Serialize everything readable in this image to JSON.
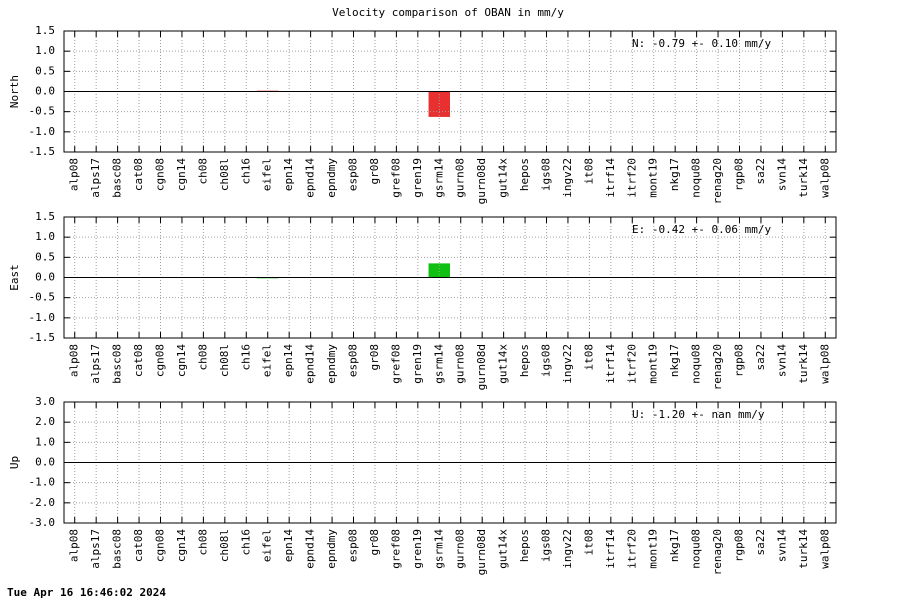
{
  "title": "Velocity comparison of OBAN in mm/y",
  "footer": "Tue Apr 16 16:46:02 2024",
  "chart_data": [
    {
      "type": "bar",
      "ylabel": "North",
      "annotation": "N:  -0.79 +-  0.10 mm/y",
      "color": "#e83030",
      "grid": true,
      "categories": [
        "alp08",
        "alps17",
        "basc08",
        "cat08",
        "cgn08",
        "cgn14",
        "ch08",
        "ch08l",
        "ch16",
        "eifel",
        "epn14",
        "epnd14",
        "epndmy",
        "esp08",
        "gr08",
        "gref08",
        "gren19",
        "gsrm14",
        "gurn08",
        "gurn08d",
        "gut14x",
        "hepos",
        "igs08",
        "ingv22",
        "it08",
        "itrf14",
        "itrf20",
        "mont19",
        "nkg17",
        "noqu08",
        "renag20",
        "rgp08",
        "sa22",
        "svn14",
        "turk14",
        "walp08"
      ],
      "values": [
        null,
        null,
        null,
        null,
        null,
        null,
        null,
        null,
        null,
        0.02,
        null,
        null,
        null,
        null,
        null,
        null,
        null,
        -0.63,
        null,
        null,
        null,
        null,
        null,
        null,
        null,
        null,
        null,
        null,
        null,
        null,
        null,
        null,
        null,
        null,
        null,
        null
      ],
      "ylim": [
        -1.5,
        1.5
      ],
      "yticks": [
        1.5,
        {
          "value": 1.0,
          "label": "1.0"
        },
        0.5,
        {
          "value": 0.0,
          "label": "0.0"
        },
        -0.5,
        {
          "value": -1.0,
          "label": "-1.0"
        },
        -1.5
      ]
    },
    {
      "type": "bar",
      "ylabel": "East",
      "annotation": "E:  -0.42 +-  0.06 mm/y",
      "color": "#10c010",
      "grid": true,
      "categories": [
        "alp08",
        "alps17",
        "basc08",
        "cat08",
        "cgn08",
        "cgn14",
        "ch08",
        "ch08l",
        "ch16",
        "eifel",
        "epn14",
        "epnd14",
        "epndmy",
        "esp08",
        "gr08",
        "gref08",
        "gren19",
        "gsrm14",
        "gurn08",
        "gurn08d",
        "gut14x",
        "hepos",
        "igs08",
        "ingv22",
        "it08",
        "itrf14",
        "itrf20",
        "mont19",
        "nkg17",
        "noqu08",
        "renag20",
        "rgp08",
        "sa22",
        "svn14",
        "turk14",
        "walp08"
      ],
      "values": [
        null,
        null,
        null,
        null,
        null,
        null,
        null,
        null,
        null,
        -0.02,
        null,
        null,
        null,
        null,
        null,
        null,
        null,
        0.35,
        null,
        null,
        null,
        null,
        null,
        null,
        null,
        null,
        null,
        null,
        null,
        null,
        null,
        null,
        null,
        null,
        null,
        null
      ],
      "ylim": [
        -1.5,
        1.5
      ],
      "yticks": [
        1.5,
        {
          "value": 1.0,
          "label": "1.0"
        },
        0.5,
        {
          "value": 0.0,
          "label": "0.0"
        },
        -0.5,
        {
          "value": -1.0,
          "label": "-1.0"
        },
        -1.5
      ]
    },
    {
      "type": "bar",
      "ylabel": "Up",
      "annotation": "U:  -1.20 +-   nan mm/y",
      "grid": true,
      "categories": [
        "alp08",
        "alps17",
        "basc08",
        "cat08",
        "cgn08",
        "cgn14",
        "ch08",
        "ch08l",
        "ch16",
        "eifel",
        "epn14",
        "epnd14",
        "epndmy",
        "esp08",
        "gr08",
        "gref08",
        "gren19",
        "gsrm14",
        "gurn08",
        "gurn08d",
        "gut14x",
        "hepos",
        "igs08",
        "ingv22",
        "it08",
        "itrf14",
        "itrf20",
        "mont19",
        "nkg17",
        "noqu08",
        "renag20",
        "rgp08",
        "sa22",
        "svn14",
        "turk14",
        "walp08"
      ],
      "values": [
        null,
        null,
        null,
        null,
        null,
        null,
        null,
        null,
        null,
        null,
        null,
        null,
        null,
        null,
        null,
        null,
        null,
        null,
        null,
        null,
        null,
        null,
        null,
        null,
        null,
        null,
        null,
        null,
        null,
        null,
        null,
        null,
        null,
        null,
        null,
        null
      ],
      "ylim": [
        -3.0,
        3.0
      ],
      "yticks": [
        {
          "value": 3.0,
          "label": "3.0"
        },
        {
          "value": 2.0,
          "label": "2.0"
        },
        {
          "value": 1.0,
          "label": "1.0"
        },
        {
          "value": 0.0,
          "label": "0.0"
        },
        {
          "value": -1.0,
          "label": "-1.0"
        },
        {
          "value": -2.0,
          "label": "-2.0"
        },
        {
          "value": -3.0,
          "label": "-3.0"
        }
      ]
    }
  ]
}
